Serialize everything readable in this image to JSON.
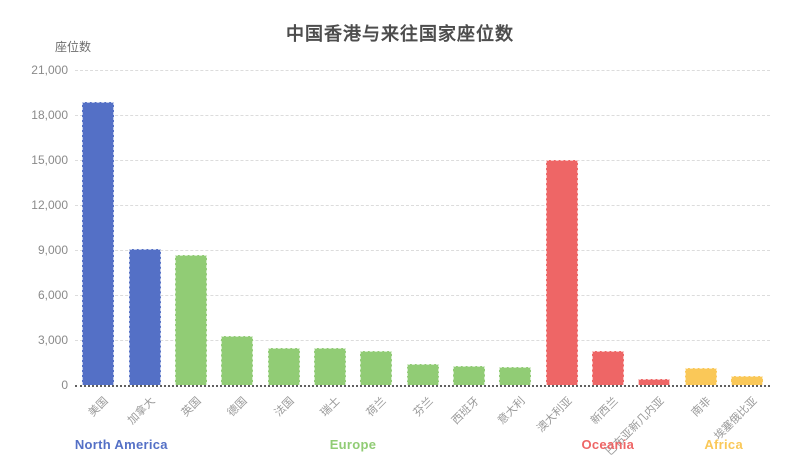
{
  "header": {
    "title": "中国香港与来往国家座位数"
  },
  "chart_data": {
    "type": "bar",
    "title": "中国香港与来往国家座位数",
    "xlabel": "",
    "ylabel": "座位数",
    "categories": [
      "美国",
      "加拿大",
      "英国",
      "德国",
      "法国",
      "瑞士",
      "荷兰",
      "芬兰",
      "西班牙",
      "意大利",
      "澳大利亚",
      "新西兰",
      "巴布亚新几内亚",
      "南非",
      "埃塞俄比亚"
    ],
    "values": [
      18900,
      9100,
      8650,
      3300,
      2500,
      2450,
      2300,
      1430,
      1280,
      1200,
      15000,
      2250,
      400,
      1150,
      600
    ],
    "groups": [
      {
        "label": "North America",
        "color": "#5470C6",
        "bar_count": 2
      },
      {
        "label": "Europe",
        "color": "#91CC75",
        "bar_count": 8
      },
      {
        "label": "Oceania",
        "color": "#EE6666",
        "bar_count": 3
      },
      {
        "label": "Africa",
        "color": "#FAC858",
        "bar_count": 2
      }
    ],
    "ylim": [
      0,
      21000
    ],
    "ytick_interval": 3000,
    "ytick_labels": [
      "0",
      "3,000",
      "6,000",
      "9,000",
      "12,000",
      "15,000",
      "18,000",
      "21,000"
    ],
    "grid": "dashed-horizontal",
    "legend_position": "bottom-group-labels"
  }
}
